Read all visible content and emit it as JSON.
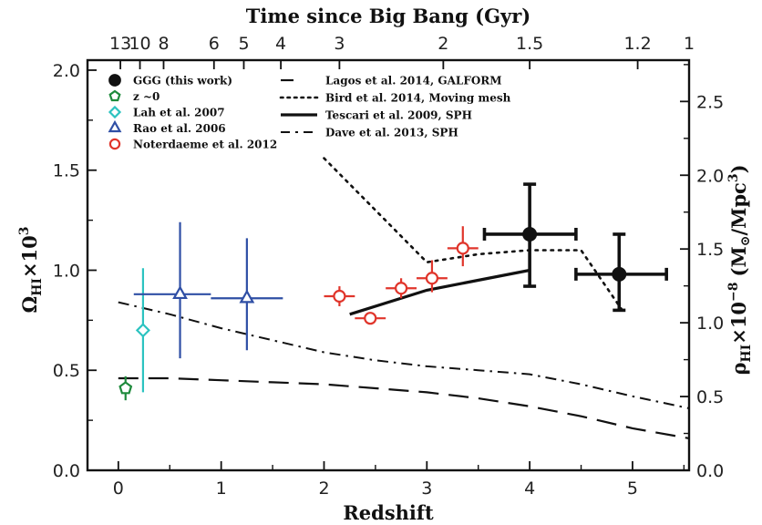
{
  "chart_data": {
    "type": "scatter",
    "xlabel": "Redshift",
    "ylabel": "Ω",
    "ylabel_sub": "HI",
    "ylabel_tail": "×10",
    "ylabel_sup": "3",
    "top_label": "Time since Big Bang (Gyr)",
    "right_label": "ρ",
    "right_label_sub": "HI",
    "right_label_mid": "×10",
    "right_label_sup": "−8",
    "right_label_units": "(M",
    "right_label_sun": "⊙",
    "right_label_units_tail": "/Mpc",
    "right_label_units_sup": "3",
    "right_label_close": ")",
    "xlim": [
      -0.3,
      5.55
    ],
    "ylim": [
      0.0,
      2.05
    ],
    "right_ylim": [
      0.0,
      2.78
    ],
    "x_ticks": [
      {
        "v": 0,
        "label": "0"
      },
      {
        "v": 1,
        "label": "1"
      },
      {
        "v": 2,
        "label": "2"
      },
      {
        "v": 3,
        "label": "3"
      },
      {
        "v": 4,
        "label": "4"
      },
      {
        "v": 5,
        "label": "5"
      }
    ],
    "y_ticks": [
      {
        "v": 0.0,
        "label": "0.0"
      },
      {
        "v": 0.5,
        "label": "0.5"
      },
      {
        "v": 1.0,
        "label": "1.0"
      },
      {
        "v": 1.5,
        "label": "1.5"
      },
      {
        "v": 2.0,
        "label": "2.0"
      }
    ],
    "right_ticks": [
      {
        "v": 0.0,
        "label": "0.0"
      },
      {
        "v": 0.5,
        "label": "0.5"
      },
      {
        "v": 1.0,
        "label": "1.0"
      },
      {
        "v": 1.5,
        "label": "1.5"
      },
      {
        "v": 2.0,
        "label": "2.0"
      },
      {
        "v": 2.5,
        "label": "2.5"
      }
    ],
    "top_ticks": [
      {
        "x": 0.02,
        "label": "13"
      },
      {
        "x": 0.21,
        "label": "10"
      },
      {
        "x": 0.44,
        "label": "8"
      },
      {
        "x": 0.93,
        "label": "6"
      },
      {
        "x": 1.22,
        "label": "5"
      },
      {
        "x": 1.58,
        "label": "4"
      },
      {
        "x": 2.15,
        "label": "3"
      },
      {
        "x": 3.16,
        "label": "2"
      },
      {
        "x": 4.0,
        "label": "1.5"
      },
      {
        "x": 5.05,
        "label": "1.2"
      },
      {
        "x": 5.55,
        "label": "1"
      }
    ],
    "series": [
      {
        "name": "GGG (this work)",
        "marker": "filled-circle",
        "color": "#111111",
        "points": [
          {
            "x": 4.0,
            "y": 1.18,
            "xlo": 3.56,
            "xhi": 4.45,
            "ylo": 0.92,
            "yhi": 1.43
          },
          {
            "x": 4.87,
            "y": 0.98,
            "xlo": 4.45,
            "xhi": 5.33,
            "ylo": 0.8,
            "yhi": 1.18
          }
        ]
      },
      {
        "name": "z ~0",
        "marker": "pentagon",
        "color": "#1e8a3c",
        "points": [
          {
            "x": 0.07,
            "y": 0.41,
            "xlo": 0.07,
            "xhi": 0.07,
            "ylo": 0.35,
            "yhi": 0.47
          }
        ]
      },
      {
        "name": "Lah et al. 2007",
        "marker": "diamond",
        "color": "#2cc3c0",
        "points": [
          {
            "x": 0.24,
            "y": 0.7,
            "xlo": 0.24,
            "xhi": 0.24,
            "ylo": 0.39,
            "yhi": 1.01
          }
        ]
      },
      {
        "name": "Rao et al. 2006",
        "marker": "triangle",
        "color": "#2f4fa5",
        "points": [
          {
            "x": 0.6,
            "y": 0.88,
            "xlo": 0.15,
            "xhi": 0.9,
            "ylo": 0.56,
            "yhi": 1.24
          },
          {
            "x": 1.25,
            "y": 0.86,
            "xlo": 0.9,
            "xhi": 1.6,
            "ylo": 0.6,
            "yhi": 1.16
          }
        ]
      },
      {
        "name": "Noterdaeme et al. 2012",
        "marker": "open-circle",
        "color": "#e0352b",
        "points": [
          {
            "x": 2.15,
            "y": 0.87,
            "xlo": 2.0,
            "xhi": 2.3,
            "ylo": 0.82,
            "yhi": 0.92
          },
          {
            "x": 2.45,
            "y": 0.76,
            "xlo": 2.3,
            "xhi": 2.6,
            "ylo": 0.73,
            "yhi": 0.79
          },
          {
            "x": 2.75,
            "y": 0.91,
            "xlo": 2.6,
            "xhi": 2.9,
            "ylo": 0.86,
            "yhi": 0.96
          },
          {
            "x": 3.05,
            "y": 0.96,
            "xlo": 2.9,
            "xhi": 3.2,
            "ylo": 0.89,
            "yhi": 1.05
          },
          {
            "x": 3.35,
            "y": 1.11,
            "xlo": 3.2,
            "xhi": 3.5,
            "ylo": 1.02,
            "yhi": 1.22
          }
        ]
      }
    ],
    "model_lines": [
      {
        "name": "Lagos et al. 2014, GALFORM",
        "style": "longdash",
        "width": 2.2,
        "x": [
          0.0,
          0.5,
          1.0,
          1.5,
          2.0,
          2.5,
          3.0,
          3.5,
          4.0,
          4.5,
          5.0,
          5.55
        ],
        "y": [
          0.46,
          0.46,
          0.45,
          0.44,
          0.43,
          0.41,
          0.39,
          0.36,
          0.32,
          0.27,
          0.21,
          0.16
        ]
      },
      {
        "name": "Bird et al. 2014, Moving mesh",
        "style": "dotted",
        "width": 2.6,
        "x": [
          2.0,
          2.5,
          3.0,
          3.5,
          4.0,
          4.5,
          4.9
        ],
        "y": [
          1.56,
          1.3,
          1.04,
          1.08,
          1.1,
          1.1,
          0.8
        ]
      },
      {
        "name": "Tescari et al. 2009, SPH",
        "style": "solid",
        "width": 3.2,
        "x": [
          2.25,
          3.0,
          4.0
        ],
        "y": [
          0.78,
          0.9,
          1.0
        ]
      },
      {
        "name": "Dave et al. 2013, SPH",
        "style": "dashdot",
        "width": 2.0,
        "x": [
          0.0,
          0.5,
          1.0,
          1.5,
          2.0,
          2.5,
          3.0,
          3.5,
          4.0,
          4.5,
          5.0,
          5.55
        ],
        "y": [
          0.84,
          0.78,
          0.71,
          0.65,
          0.59,
          0.55,
          0.52,
          0.5,
          0.48,
          0.43,
          0.37,
          0.31
        ]
      }
    ],
    "legend_placement": "top-left"
  }
}
